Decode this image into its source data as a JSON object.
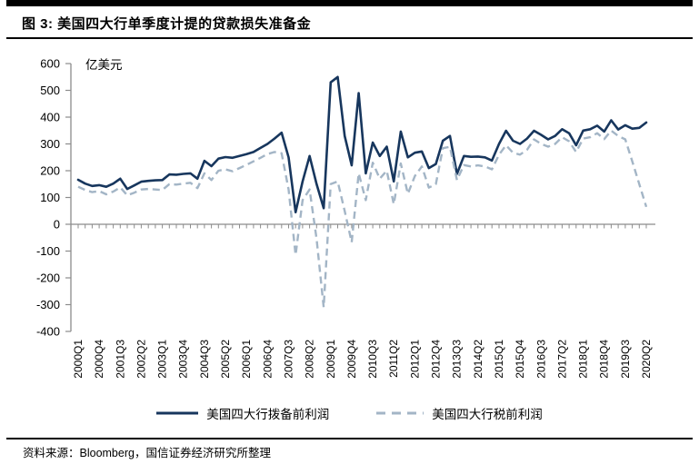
{
  "header": {
    "title": "图 3:  美国四大行单季度计提的贷款损失准备金"
  },
  "footer": {
    "source": "资料来源：Bloomberg，国信证券经济研究所整理"
  },
  "colors": {
    "series_solid": "#17365d",
    "series_dashed": "#a3b5c6",
    "axis": "#8c8c8c",
    "text": "#000000",
    "rule": "#000000"
  },
  "chart_data": {
    "type": "line",
    "title": "美国四大行单季度计提的贷款损失准备金",
    "unit_label": "亿美元",
    "xlabel": "",
    "ylabel": "亿美元",
    "ylim": [
      -400,
      600
    ],
    "yticks": [
      600,
      500,
      400,
      300,
      200,
      100,
      0,
      -100,
      -200,
      -300,
      -400
    ],
    "grid": false,
    "legend_position": "bottom",
    "xtick_every": 3,
    "xtick_labels_shown": [
      "2000Q1",
      "2000Q4",
      "2001Q3",
      "2002Q2",
      "2003Q1",
      "2003Q4",
      "2004Q3",
      "2005Q2",
      "2006Q1",
      "2006Q4",
      "2007Q3",
      "2008Q2",
      "2009Q1",
      "2009Q4",
      "2010Q3",
      "2011Q2",
      "2012Q1",
      "2012Q4",
      "2013Q3",
      "2014Q2",
      "2015Q1",
      "2015Q4",
      "2016Q3",
      "2017Q2",
      "2018Q1",
      "2018Q4",
      "2019Q3",
      "2020Q2"
    ],
    "x_quarters": [
      "2000Q1",
      "2000Q2",
      "2000Q3",
      "2000Q4",
      "2001Q1",
      "2001Q2",
      "2001Q3",
      "2001Q4",
      "2002Q1",
      "2002Q2",
      "2002Q3",
      "2002Q4",
      "2003Q1",
      "2003Q2",
      "2003Q3",
      "2003Q4",
      "2004Q1",
      "2004Q2",
      "2004Q3",
      "2004Q4",
      "2005Q1",
      "2005Q2",
      "2005Q3",
      "2005Q4",
      "2006Q1",
      "2006Q2",
      "2006Q3",
      "2006Q4",
      "2007Q1",
      "2007Q2",
      "2007Q3",
      "2007Q4",
      "2008Q1",
      "2008Q2",
      "2008Q3",
      "2008Q4",
      "2009Q1",
      "2009Q2",
      "2009Q3",
      "2009Q4",
      "2010Q1",
      "2010Q2",
      "2010Q3",
      "2010Q4",
      "2011Q1",
      "2011Q2",
      "2011Q3",
      "2011Q4",
      "2012Q1",
      "2012Q2",
      "2012Q3",
      "2012Q4",
      "2013Q1",
      "2013Q2",
      "2013Q3",
      "2013Q4",
      "2014Q1",
      "2014Q2",
      "2014Q3",
      "2014Q4",
      "2015Q1",
      "2015Q2",
      "2015Q3",
      "2015Q4",
      "2016Q1",
      "2016Q2",
      "2016Q3",
      "2016Q4",
      "2017Q1",
      "2017Q2",
      "2017Q3",
      "2017Q4",
      "2018Q1",
      "2018Q2",
      "2018Q3",
      "2018Q4",
      "2019Q1",
      "2019Q2",
      "2019Q3",
      "2019Q4",
      "2020Q1",
      "2020Q2"
    ],
    "series": [
      {
        "name": "美国四大行拨备前利润",
        "style": "solid",
        "color": "#17365d",
        "values": [
          166,
          152,
          143,
          146,
          140,
          152,
          170,
          132,
          145,
          159,
          162,
          164,
          165,
          186,
          185,
          188,
          190,
          170,
          237,
          217,
          245,
          251,
          248,
          255,
          262,
          270,
          285,
          300,
          320,
          342,
          250,
          45,
          160,
          255,
          150,
          60,
          530,
          550,
          330,
          220,
          490,
          190,
          305,
          255,
          290,
          160,
          346,
          250,
          267,
          272,
          210,
          225,
          312,
          330,
          188,
          255,
          252,
          253,
          250,
          238,
          300,
          349,
          312,
          300,
          320,
          349,
          334,
          317,
          330,
          355,
          340,
          295,
          350,
          355,
          368,
          346,
          388,
          354,
          370,
          357,
          360,
          380
        ]
      },
      {
        "name": "美国四大行税前利润",
        "style": "dashed",
        "color": "#a3b5c6",
        "values": [
          140,
          128,
          120,
          124,
          112,
          122,
          138,
          108,
          118,
          130,
          132,
          130,
          128,
          150,
          148,
          152,
          155,
          135,
          190,
          165,
          200,
          205,
          198,
          210,
          222,
          235,
          248,
          262,
          270,
          265,
          130,
          -115,
          90,
          130,
          -55,
          -310,
          150,
          160,
          50,
          -67,
          190,
          90,
          230,
          170,
          200,
          75,
          227,
          114,
          180,
          216,
          137,
          150,
          284,
          289,
          165,
          221,
          216,
          220,
          216,
          205,
          260,
          295,
          267,
          260,
          278,
          317,
          300,
          290,
          300,
          325,
          310,
          270,
          320,
          325,
          340,
          318,
          350,
          330,
          317,
          235,
          150,
          65
        ]
      }
    ]
  }
}
